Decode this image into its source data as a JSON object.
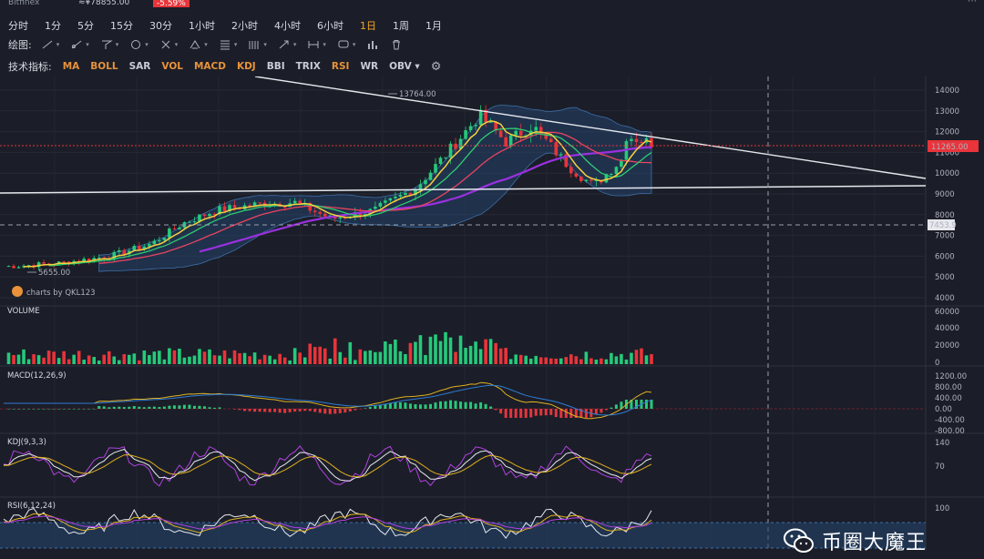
{
  "top": {
    "exchange": "Bitfinex",
    "price": "≈¥78855.00",
    "change": "-5.59%"
  },
  "intervals": [
    {
      "label": "分时"
    },
    {
      "label": "1分"
    },
    {
      "label": "5分"
    },
    {
      "label": "15分"
    },
    {
      "label": "30分"
    },
    {
      "label": "1小时"
    },
    {
      "label": "2小时"
    },
    {
      "label": "4小时"
    },
    {
      "label": "6小时"
    },
    {
      "label": "1日",
      "active": true
    },
    {
      "label": "1周"
    },
    {
      "label": "1月"
    }
  ],
  "draw_toolbar": {
    "label": "绘图:",
    "tools": [
      "line",
      "ray",
      "fork",
      "circle",
      "cross",
      "pitchfork",
      "fib",
      "channel",
      "arrow",
      "range",
      "comment",
      "measure",
      "trash"
    ]
  },
  "indicators": {
    "label": "技术指标:",
    "items": [
      {
        "label": "MA",
        "color": "#e8923a"
      },
      {
        "label": "BOLL",
        "color": "#e8923a"
      },
      {
        "label": "SAR",
        "color": "#c9ccd6"
      },
      {
        "label": "VOL",
        "color": "#e8923a"
      },
      {
        "label": "MACD",
        "color": "#e8923a"
      },
      {
        "label": "KDJ",
        "color": "#e8923a"
      },
      {
        "label": "BBI",
        "color": "#c9ccd6"
      },
      {
        "label": "TRIX",
        "color": "#c9ccd6"
      },
      {
        "label": "RSI",
        "color": "#e8923a"
      },
      {
        "label": "WR",
        "color": "#c9ccd6"
      },
      {
        "label": "OBV ▾",
        "color": "#c9ccd6"
      }
    ]
  },
  "chart": {
    "watermark": "charts by QKL123",
    "high_label": "13764.00",
    "low_label": "5655.00",
    "price_ticks": [
      "14000",
      "13000",
      "12000",
      "11000",
      "10000",
      "9000",
      "8000",
      "7000",
      "6000",
      "5000",
      "4000"
    ],
    "current_price": "11265.00",
    "crosshair_price": "7453.9",
    "panels": {
      "volume": {
        "title": "VOLUME",
        "ticks": [
          "60000",
          "40000",
          "20000",
          "0"
        ]
      },
      "macd": {
        "title": "MACD(12,26,9)",
        "ticks": [
          "1200.00",
          "800.00",
          "400.00",
          "0.00",
          "-400.00",
          "-800.00"
        ]
      },
      "kdj": {
        "title": "KDJ(9,3,3)",
        "ticks": [
          "140",
          "70"
        ]
      },
      "rsi": {
        "title": "RSI(6,12,24)",
        "ticks": [
          "100"
        ]
      }
    },
    "colors": {
      "up": "#26c97a",
      "down": "#e8343a",
      "ma_yellow": "#f4d03f",
      "ma_green": "#2ecc71",
      "ma_red": "#e84560",
      "ma_purple": "#9b30e0",
      "boll": "#3d6fa8"
    }
  },
  "watermark_account": "币圈大魔王"
}
